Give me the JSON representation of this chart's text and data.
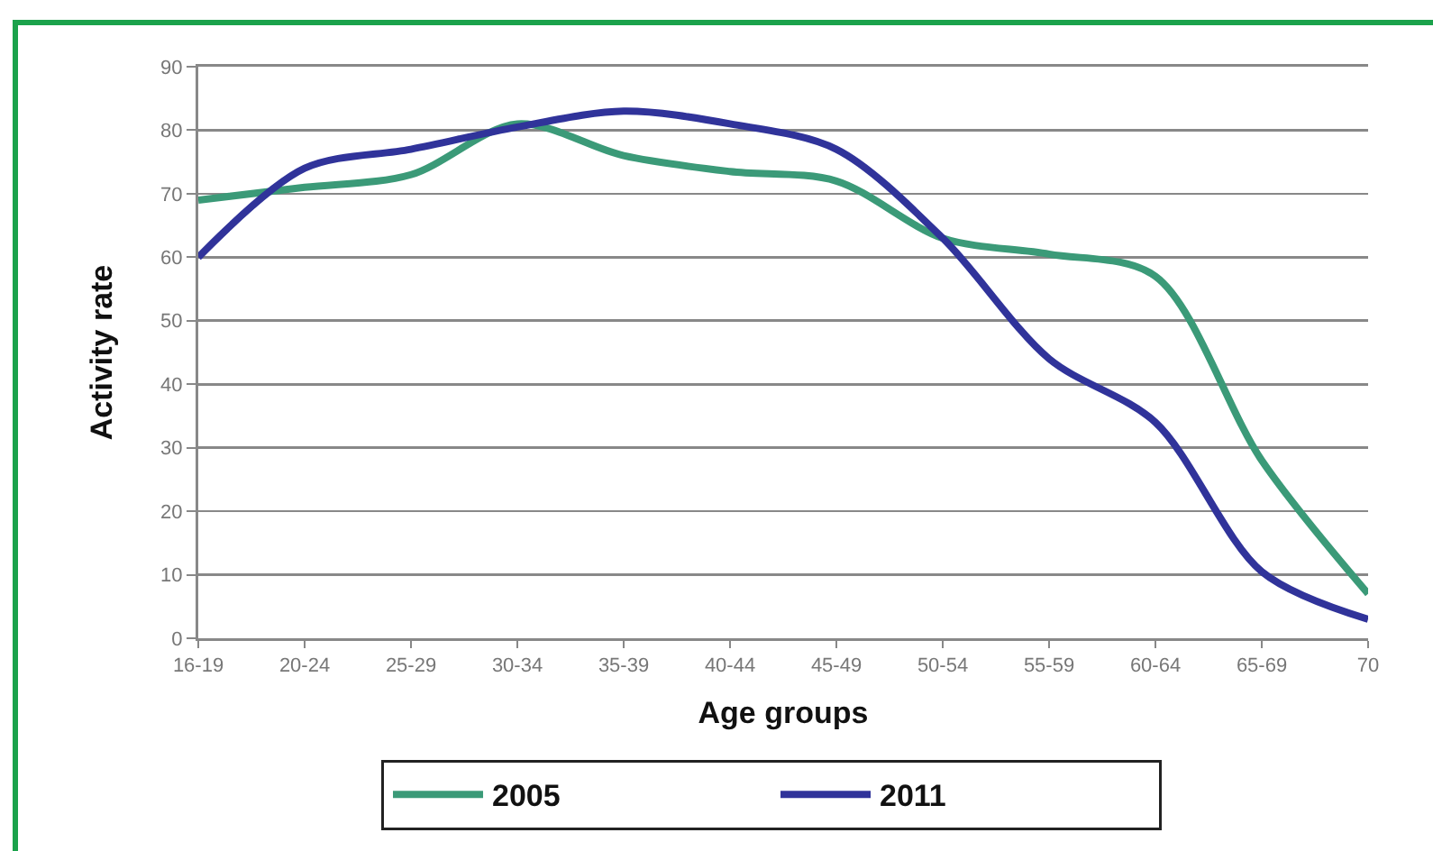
{
  "chart_data": {
    "type": "line",
    "xlabel": "Age groups",
    "ylabel": "Activity rate",
    "categories": [
      "16-19",
      "20-24",
      "25-29",
      "30-34",
      "35-39",
      "40-44",
      "45-49",
      "50-54",
      "55-59",
      "60-64",
      "65-69",
      "70"
    ],
    "series": [
      {
        "name": "2005",
        "color": "#3b9a78",
        "values": [
          69,
          71,
          73,
          81,
          76,
          73.5,
          72,
          63,
          60.5,
          57,
          28,
          7
        ]
      },
      {
        "name": "2011",
        "color": "#30339a",
        "values": [
          60,
          74,
          77,
          80.5,
          83,
          81,
          77,
          63,
          44,
          34,
          10.5,
          3
        ]
      }
    ],
    "ylim": [
      0,
      90
    ],
    "yticks": [
      0,
      10,
      20,
      30,
      40,
      50,
      60,
      70,
      80,
      90
    ],
    "grid": "y",
    "legend": "bottom",
    "marker": "none",
    "line_style": "solid"
  }
}
